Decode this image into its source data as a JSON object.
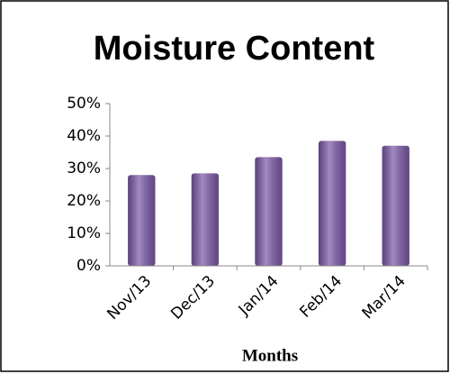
{
  "chart_data": {
    "type": "bar",
    "title": "Moisture Content",
    "x_label": "Months",
    "categories": [
      "Nov/13",
      "Dec/13",
      "Jan/14",
      "Feb/14",
      "Mar/14"
    ],
    "values": [
      28,
      28.5,
      33.5,
      38.5,
      37
    ],
    "color": "#7b58a8",
    "ylim": [
      0,
      50
    ],
    "yticks": [
      {
        "value": 0,
        "label": "0%"
      },
      {
        "value": 10,
        "label": "10%"
      },
      {
        "value": 20,
        "label": "20%"
      },
      {
        "value": 30,
        "label": "30%"
      },
      {
        "value": 40,
        "label": "40%"
      },
      {
        "value": 50,
        "label": "50%"
      }
    ],
    "grid": false
  }
}
